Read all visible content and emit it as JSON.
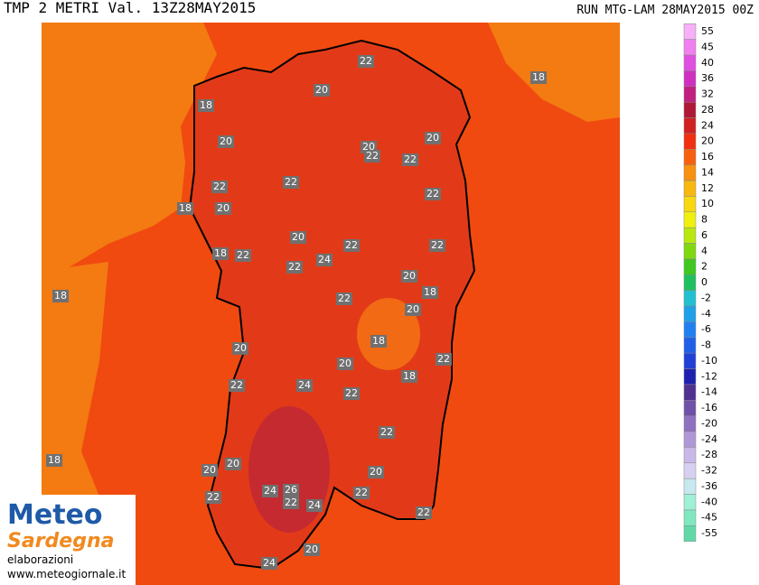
{
  "header": {
    "title": "TMP 2 METRI Val. 13Z28MAY2015",
    "run": "RUN MTG-LAM 28MAY2015 00Z"
  },
  "legend": {
    "levels": [
      {
        "value": 55,
        "color": "#f8b0f8"
      },
      {
        "value": 45,
        "color": "#f080f0"
      },
      {
        "value": 40,
        "color": "#e050e0"
      },
      {
        "value": 36,
        "color": "#d030c0"
      },
      {
        "value": 32,
        "color": "#c02080"
      },
      {
        "value": 28,
        "color": "#b01838"
      },
      {
        "value": 24,
        "color": "#d02020"
      },
      {
        "value": 20,
        "color": "#f03010"
      },
      {
        "value": 16,
        "color": "#f86010"
      },
      {
        "value": 14,
        "color": "#f89010"
      },
      {
        "value": 12,
        "color": "#f8b810"
      },
      {
        "value": 10,
        "color": "#f8d810"
      },
      {
        "value": 8,
        "color": "#f0f010"
      },
      {
        "value": 6,
        "color": "#b8e810"
      },
      {
        "value": 4,
        "color": "#80d810"
      },
      {
        "value": 2,
        "color": "#40c820"
      },
      {
        "value": 0,
        "color": "#20c060"
      },
      {
        "value": -2,
        "color": "#20c0d0"
      },
      {
        "value": -4,
        "color": "#20a0e8"
      },
      {
        "value": -6,
        "color": "#2080f0"
      },
      {
        "value": -8,
        "color": "#2060e8"
      },
      {
        "value": -10,
        "color": "#2040d8"
      },
      {
        "value": -12,
        "color": "#2020b0"
      },
      {
        "value": -14,
        "color": "#503090"
      },
      {
        "value": -16,
        "color": "#7050a8"
      },
      {
        "value": -20,
        "color": "#9070c0"
      },
      {
        "value": -24,
        "color": "#b098d8"
      },
      {
        "value": -28,
        "color": "#c8b8e8"
      },
      {
        "value": -32,
        "color": "#d8d0f0"
      },
      {
        "value": -36,
        "color": "#c8e8f0"
      },
      {
        "value": -40,
        "color": "#a0f0d8"
      },
      {
        "value": -45,
        "color": "#80e8c0"
      },
      {
        "value": -55,
        "color": "#60d8a8"
      }
    ]
  },
  "map": {
    "labels": [
      22,
      18,
      20,
      18,
      20,
      20,
      22,
      20,
      22,
      22,
      22,
      22,
      18,
      20,
      20,
      22,
      22,
      18,
      22,
      24,
      22,
      20,
      18,
      18,
      22,
      20,
      18,
      20,
      22,
      20,
      18,
      22,
      24,
      22,
      22,
      18,
      20,
      20,
      20,
      24,
      26,
      22,
      24,
      22,
      22,
      22,
      20,
      24
    ]
  },
  "logo": {
    "name_1": "Meteo",
    "name_2": "Sardegna",
    "line_1": "elaborazioni",
    "line_2": "www.meteogiornale.it"
  }
}
